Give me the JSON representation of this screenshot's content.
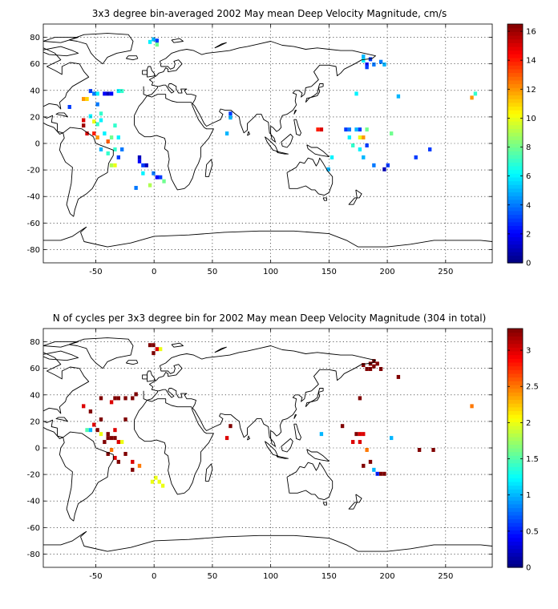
{
  "chart_data": [
    {
      "type": "heatmap",
      "title": "3x3 degree bin-averaged 2002 May mean Deep Velocity Magnitude, cm/s",
      "xlim": [
        -95,
        290
      ],
      "ylim": [
        -90,
        90
      ],
      "xticks": [
        -50,
        0,
        50,
        100,
        150,
        200,
        250
      ],
      "yticks": [
        -80,
        -60,
        -40,
        -20,
        0,
        20,
        40,
        60,
        80
      ],
      "grid": true,
      "colorbar": {
        "range": [
          0,
          16.5
        ],
        "ticks": [
          0,
          2,
          4,
          6,
          8,
          10,
          12,
          14,
          16
        ],
        "colormap": "jet",
        "placement": "right"
      },
      "bins": [
        [
          -5,
          75,
          6
        ],
        [
          1,
          73,
          8
        ],
        [
          -2,
          77,
          5
        ],
        [
          1,
          76,
          3
        ],
        [
          -56,
          38,
          3
        ],
        [
          -53,
          36,
          4
        ],
        [
          -50,
          36,
          6
        ],
        [
          -44,
          36,
          2
        ],
        [
          -41,
          36,
          1
        ],
        [
          -38,
          36,
          2
        ],
        [
          -32,
          38,
          6
        ],
        [
          -29,
          38,
          7
        ],
        [
          -74,
          26,
          3
        ],
        [
          -62,
          32,
          12
        ],
        [
          -59,
          32,
          11
        ],
        [
          -50,
          28,
          4
        ],
        [
          -47,
          21,
          7
        ],
        [
          -56,
          19,
          6
        ],
        [
          -47,
          16,
          6
        ],
        [
          -53,
          15,
          10
        ],
        [
          -50,
          13,
          7
        ],
        [
          -62,
          16,
          15
        ],
        [
          -62,
          12,
          16
        ],
        [
          -59,
          6,
          15
        ],
        [
          -53,
          6,
          14
        ],
        [
          -50,
          3,
          12
        ],
        [
          -44,
          6,
          6
        ],
        [
          -38,
          3,
          8
        ],
        [
          -32,
          3,
          6
        ],
        [
          -35,
          12,
          7
        ],
        [
          -41,
          0,
          13
        ],
        [
          -47,
          -6,
          5
        ],
        [
          -41,
          -9,
          7
        ],
        [
          -35,
          -6,
          7
        ],
        [
          -32,
          -12,
          3
        ],
        [
          -29,
          -6,
          4
        ],
        [
          -38,
          -18,
          9
        ],
        [
          -35,
          -18,
          10
        ],
        [
          -14,
          -12,
          1
        ],
        [
          -14,
          -15,
          2
        ],
        [
          -11,
          -18,
          3
        ],
        [
          -8,
          -18,
          1
        ],
        [
          -11,
          -24,
          6
        ],
        [
          -2,
          -24,
          4
        ],
        [
          1,
          -27,
          2
        ],
        [
          4,
          -27,
          3
        ],
        [
          7,
          -30,
          8
        ],
        [
          -5,
          -33,
          9
        ],
        [
          64,
          21,
          3
        ],
        [
          64,
          18,
          5
        ],
        [
          61,
          6,
          5
        ],
        [
          139,
          9,
          14
        ],
        [
          142,
          9,
          15
        ],
        [
          163,
          9,
          3
        ],
        [
          166,
          9,
          4
        ],
        [
          172,
          9,
          5
        ],
        [
          175,
          9,
          3
        ],
        [
          181,
          9,
          8
        ],
        [
          166,
          3,
          6
        ],
        [
          175,
          3,
          10
        ],
        [
          178,
          3,
          12
        ],
        [
          169,
          -3,
          7
        ],
        [
          175,
          -6,
          6
        ],
        [
          181,
          -3,
          3
        ],
        [
          178,
          -12,
          5
        ],
        [
          187,
          -18,
          4
        ],
        [
          196,
          -21,
          1
        ],
        [
          199,
          -18,
          3
        ],
        [
          202,
          6,
          8
        ],
        [
          151,
          -12,
          6
        ],
        [
          148,
          -21,
          5
        ],
        [
          178,
          61,
          6
        ],
        [
          181,
          58,
          2
        ],
        [
          181,
          56,
          3
        ],
        [
          187,
          58,
          4
        ],
        [
          184,
          62,
          3
        ],
        [
          178,
          64,
          5
        ],
        [
          193,
          60,
          4
        ],
        [
          196,
          58,
          5
        ],
        [
          172,
          36,
          6
        ],
        [
          208,
          34,
          5
        ],
        [
          223,
          -12,
          3
        ],
        [
          235,
          -6,
          3
        ],
        [
          271,
          33,
          12
        ],
        [
          274,
          36,
          7
        ],
        [
          -17,
          -35,
          4
        ]
      ]
    },
    {
      "type": "heatmap",
      "title": "N of cycles per 3x3 degree bin for 2002 May mean Deep Velocity Magnitude (304 in total)",
      "xlim": [
        -95,
        290
      ],
      "ylim": [
        -90,
        90
      ],
      "xticks": [
        -50,
        0,
        50,
        100,
        150,
        200,
        250
      ],
      "yticks": [
        -80,
        -60,
        -40,
        -20,
        0,
        20,
        40,
        60,
        80
      ],
      "grid": true,
      "colorbar": {
        "range": [
          0,
          3.3
        ],
        "ticks": [
          0,
          0.5,
          1,
          1.5,
          2,
          2.5,
          3
        ],
        "colormap": "jet",
        "placement": "right"
      },
      "bins": [
        [
          -5,
          76,
          3.3
        ],
        [
          -2,
          76,
          3.3
        ],
        [
          1,
          73,
          3
        ],
        [
          4,
          73,
          2
        ],
        [
          -2,
          70,
          3.3
        ],
        [
          -47,
          36,
          3.3
        ],
        [
          -35,
          36,
          3.3
        ],
        [
          -32,
          36,
          3.3
        ],
        [
          -26,
          36,
          3.3
        ],
        [
          -20,
          36,
          3.3
        ],
        [
          -38,
          33,
          3
        ],
        [
          -17,
          39,
          3.3
        ],
        [
          -62,
          30,
          3
        ],
        [
          -56,
          26,
          3.3
        ],
        [
          -47,
          20,
          3.3
        ],
        [
          -53,
          16,
          3
        ],
        [
          -59,
          12,
          1.5
        ],
        [
          -56,
          12,
          1
        ],
        [
          -50,
          12,
          3.3
        ],
        [
          -47,
          9,
          2
        ],
        [
          -41,
          9,
          3.3
        ],
        [
          -38,
          6,
          3.3
        ],
        [
          -35,
          6,
          3.3
        ],
        [
          -41,
          6,
          3.3
        ],
        [
          -44,
          3,
          3.3
        ],
        [
          -32,
          3,
          3
        ],
        [
          -29,
          3,
          2
        ],
        [
          -35,
          12,
          3
        ],
        [
          -26,
          20,
          3.3
        ],
        [
          -41,
          -6,
          3.3
        ],
        [
          -38,
          -3,
          2.5
        ],
        [
          -35,
          -9,
          3
        ],
        [
          -32,
          -12,
          3.3
        ],
        [
          -26,
          -6,
          3.3
        ],
        [
          -20,
          -12,
          3
        ],
        [
          -20,
          -18,
          3.3
        ],
        [
          -14,
          -15,
          2.5
        ],
        [
          0,
          -24,
          2
        ],
        [
          3,
          -27,
          2
        ],
        [
          6,
          -30,
          2
        ],
        [
          -3,
          -27,
          2
        ],
        [
          64,
          15,
          3.3
        ],
        [
          61,
          6,
          3
        ],
        [
          142,
          9,
          1
        ],
        [
          172,
          9,
          3.3
        ],
        [
          175,
          9,
          3
        ],
        [
          178,
          9,
          3
        ],
        [
          169,
          3,
          3
        ],
        [
          175,
          3,
          3
        ],
        [
          160,
          15,
          3.3
        ],
        [
          181,
          -3,
          2.5
        ],
        [
          184,
          -12,
          3.3
        ],
        [
          187,
          -18,
          1
        ],
        [
          193,
          -21,
          3.3
        ],
        [
          178,
          -15,
          3.3
        ],
        [
          202,
          6,
          1
        ],
        [
          175,
          36,
          3.3
        ],
        [
          178,
          61,
          3.3
        ],
        [
          181,
          58,
          3.3
        ],
        [
          184,
          62,
          3.3
        ],
        [
          187,
          60,
          3.3
        ],
        [
          190,
          62,
          3.3
        ],
        [
          193,
          58,
          3.3
        ],
        [
          187,
          64,
          3.3
        ],
        [
          184,
          58,
          3.3
        ],
        [
          208,
          52,
          3.3
        ],
        [
          190,
          -21,
          0.5
        ],
        [
          196,
          -21,
          3.3
        ],
        [
          226,
          -3,
          3.3
        ],
        [
          238,
          -3,
          3.3
        ],
        [
          271,
          30,
          2.5
        ]
      ]
    }
  ]
}
